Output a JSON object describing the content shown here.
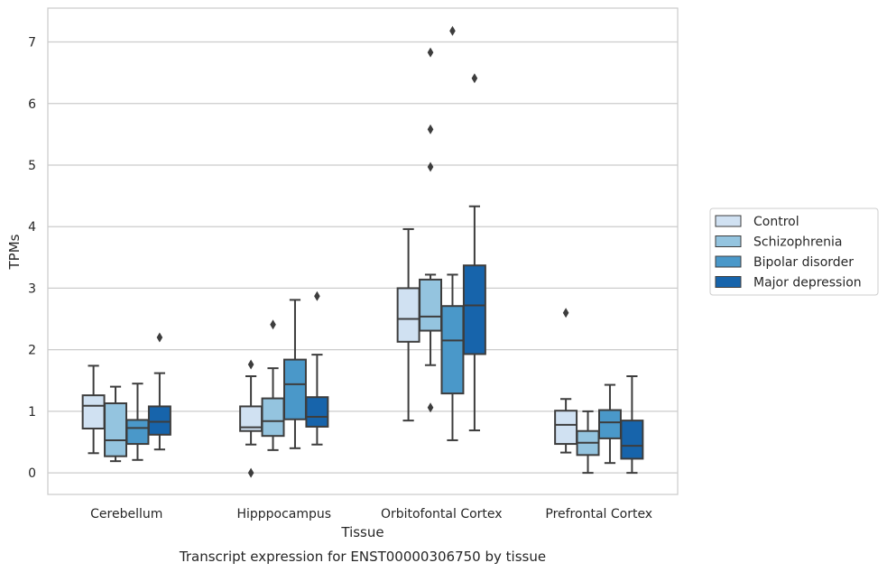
{
  "chart_data": {
    "type": "box",
    "xlabel": "Tissue",
    "ylabel": "TPMs",
    "caption": "Transcript expression for ENST00000306750 by tissue",
    "ylim": [
      -0.35,
      7.55
    ],
    "yticks": [
      0,
      1,
      2,
      3,
      4,
      5,
      6,
      7
    ],
    "grid": "horizontal",
    "legend_position": "right",
    "categories": [
      "Cerebellum",
      "Hipppocampus",
      "Orbitofontal Cortex",
      "Prefrontal Cortex"
    ],
    "series": [
      {
        "name": "Control",
        "color": "#d0e1f2",
        "boxes": [
          {
            "whislo": 0.32,
            "q1": 0.72,
            "med": 1.09,
            "q3": 1.26,
            "whishi": 1.74,
            "fliers": []
          },
          {
            "whislo": 0.46,
            "q1": 0.68,
            "med": 0.74,
            "q3": 1.08,
            "whishi": 1.57,
            "fliers": [
              1.76,
              0.0
            ]
          },
          {
            "whislo": 0.85,
            "q1": 2.13,
            "med": 2.5,
            "q3": 3.0,
            "whishi": 3.96,
            "fliers": []
          },
          {
            "whislo": 0.33,
            "q1": 0.47,
            "med": 0.78,
            "q3": 1.01,
            "whishi": 1.2,
            "fliers": [
              2.6
            ]
          }
        ]
      },
      {
        "name": "Schizophrenia",
        "color": "#94c4df",
        "boxes": [
          {
            "whislo": 0.19,
            "q1": 0.27,
            "med": 0.53,
            "q3": 1.13,
            "whishi": 1.4,
            "fliers": []
          },
          {
            "whislo": 0.37,
            "q1": 0.6,
            "med": 0.84,
            "q3": 1.21,
            "whishi": 1.7,
            "fliers": [
              2.41
            ]
          },
          {
            "whislo": 1.75,
            "q1": 2.31,
            "med": 2.54,
            "q3": 3.14,
            "whishi": 3.22,
            "fliers": [
              1.06,
              4.97,
              5.58,
              6.83
            ]
          },
          {
            "whislo": 0.0,
            "q1": 0.29,
            "med": 0.49,
            "q3": 0.68,
            "whishi": 1.0,
            "fliers": []
          }
        ]
      },
      {
        "name": "Bipolar disorder",
        "color": "#4a98c9",
        "boxes": [
          {
            "whislo": 0.21,
            "q1": 0.47,
            "med": 0.73,
            "q3": 0.86,
            "whishi": 1.45,
            "fliers": []
          },
          {
            "whislo": 0.4,
            "q1": 0.87,
            "med": 1.44,
            "q3": 1.84,
            "whishi": 2.81,
            "fliers": []
          },
          {
            "whislo": 0.53,
            "q1": 1.29,
            "med": 2.15,
            "q3": 2.71,
            "whishi": 3.22,
            "fliers": [
              7.18
            ]
          },
          {
            "whislo": 0.16,
            "q1": 0.56,
            "med": 0.82,
            "q3": 1.02,
            "whishi": 1.43,
            "fliers": []
          }
        ]
      },
      {
        "name": "Major depression",
        "color": "#1764ab",
        "boxes": [
          {
            "whislo": 0.38,
            "q1": 0.62,
            "med": 0.83,
            "q3": 1.08,
            "whishi": 1.62,
            "fliers": [
              2.2
            ]
          },
          {
            "whislo": 0.46,
            "q1": 0.75,
            "med": 0.91,
            "q3": 1.23,
            "whishi": 1.92,
            "fliers": [
              2.87
            ]
          },
          {
            "whislo": 0.69,
            "q1": 1.93,
            "med": 2.72,
            "q3": 3.37,
            "whishi": 4.33,
            "fliers": [
              6.41
            ]
          },
          {
            "whislo": 0.0,
            "q1": 0.23,
            "med": 0.44,
            "q3": 0.85,
            "whishi": 1.57,
            "fliers": []
          }
        ]
      }
    ]
  }
}
